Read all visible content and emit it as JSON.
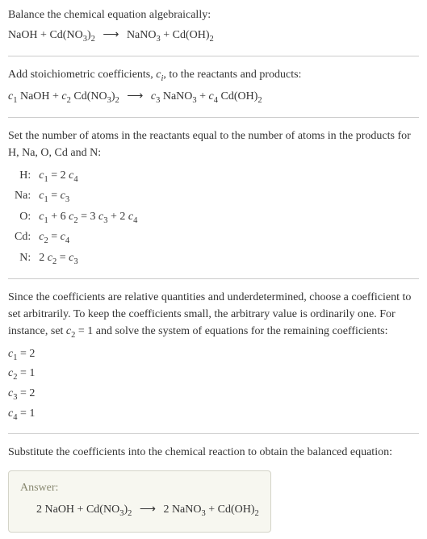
{
  "step1": {
    "intro": "Balance the chemical equation algebraically:",
    "lhs1": "NaOH",
    "plus": " + ",
    "lhs2": "Cd(NO",
    "lhs2sub": "3",
    "lhs2close": ")",
    "lhs2sub2": "2",
    "arrow": "⟶",
    "rhs1": "NaNO",
    "rhs1sub": "3",
    "rhs2": "Cd(OH)",
    "rhs2sub": "2"
  },
  "step2": {
    "intro_a": "Add stoichiometric coefficients, ",
    "intro_ci": "c",
    "intro_ci_sub": "i",
    "intro_b": ", to the reactants and products:",
    "c1": "c",
    "c1sub": "1",
    "sp1": " NaOH",
    "c2": "c",
    "c2sub": "2",
    "sp2_a": " Cd(NO",
    "sp2_sub1": "3",
    "sp2_b": ")",
    "sp2_sub2": "2",
    "c3": "c",
    "c3sub": "3",
    "sp3_a": " NaNO",
    "sp3_sub": "3",
    "c4": "c",
    "c4sub": "4",
    "sp4_a": " Cd(OH)",
    "sp4_sub": "2",
    "arrow": "⟶"
  },
  "step3": {
    "intro": "Set the number of atoms in the reactants equal to the number of atoms in the products for H, Na, O, Cd and N:",
    "rows": [
      {
        "label": "H:",
        "eq_pre": "c",
        "eq_s1": "1",
        "eq_mid": " = 2 ",
        "eq_c2": "c",
        "eq_s2": "4",
        "eq_post": ""
      },
      {
        "label": "Na:",
        "eq_pre": "c",
        "eq_s1": "1",
        "eq_mid": " = ",
        "eq_c2": "c",
        "eq_s2": "3",
        "eq_post": ""
      },
      {
        "label": "O:",
        "eq_full": ""
      },
      {
        "label": "Cd:",
        "eq_pre": "c",
        "eq_s1": "2",
        "eq_mid": " = ",
        "eq_c2": "c",
        "eq_s2": "4",
        "eq_post": ""
      },
      {
        "label": "N:",
        "eq_pre": "2 c",
        "eq_s1": "2",
        "eq_mid": " = ",
        "eq_c2": "c",
        "eq_s2": "3",
        "eq_post": ""
      }
    ],
    "row_o": {
      "p1": "c",
      "s1": "1",
      "p2": " + 6 ",
      "p3": "c",
      "s3": "2",
      "p4": " = 3 ",
      "p5": "c",
      "s5": "3",
      "p6": " + 2 ",
      "p7": "c",
      "s7": "4"
    }
  },
  "step4": {
    "intro_a": "Since the coefficients are relative quantities and underdetermined, choose a coefficient to set arbitrarily. To keep the coefficients small, the arbitrary value is ordinarily one. For instance, set ",
    "intro_c": "c",
    "intro_csub": "2",
    "intro_b": " = 1 and solve the system of equations for the remaining coefficients:",
    "lines": [
      {
        "c": "c",
        "sub": "1",
        "val": " = 2"
      },
      {
        "c": "c",
        "sub": "2",
        "val": " = 1"
      },
      {
        "c": "c",
        "sub": "3",
        "val": " = 2"
      },
      {
        "c": "c",
        "sub": "4",
        "val": " = 1"
      }
    ]
  },
  "step5": {
    "intro": "Substitute the coefficients into the chemical reaction to obtain the balanced equation:",
    "answer_label": "Answer:",
    "eq": {
      "a1": "2 NaOH",
      "plus": " + ",
      "a2a": "Cd(NO",
      "a2s1": "3",
      "a2b": ")",
      "a2s2": "2",
      "arrow": "⟶",
      "b1a": "2 NaNO",
      "b1s": "3",
      "b2a": "Cd(OH)",
      "b2s": "2"
    }
  }
}
